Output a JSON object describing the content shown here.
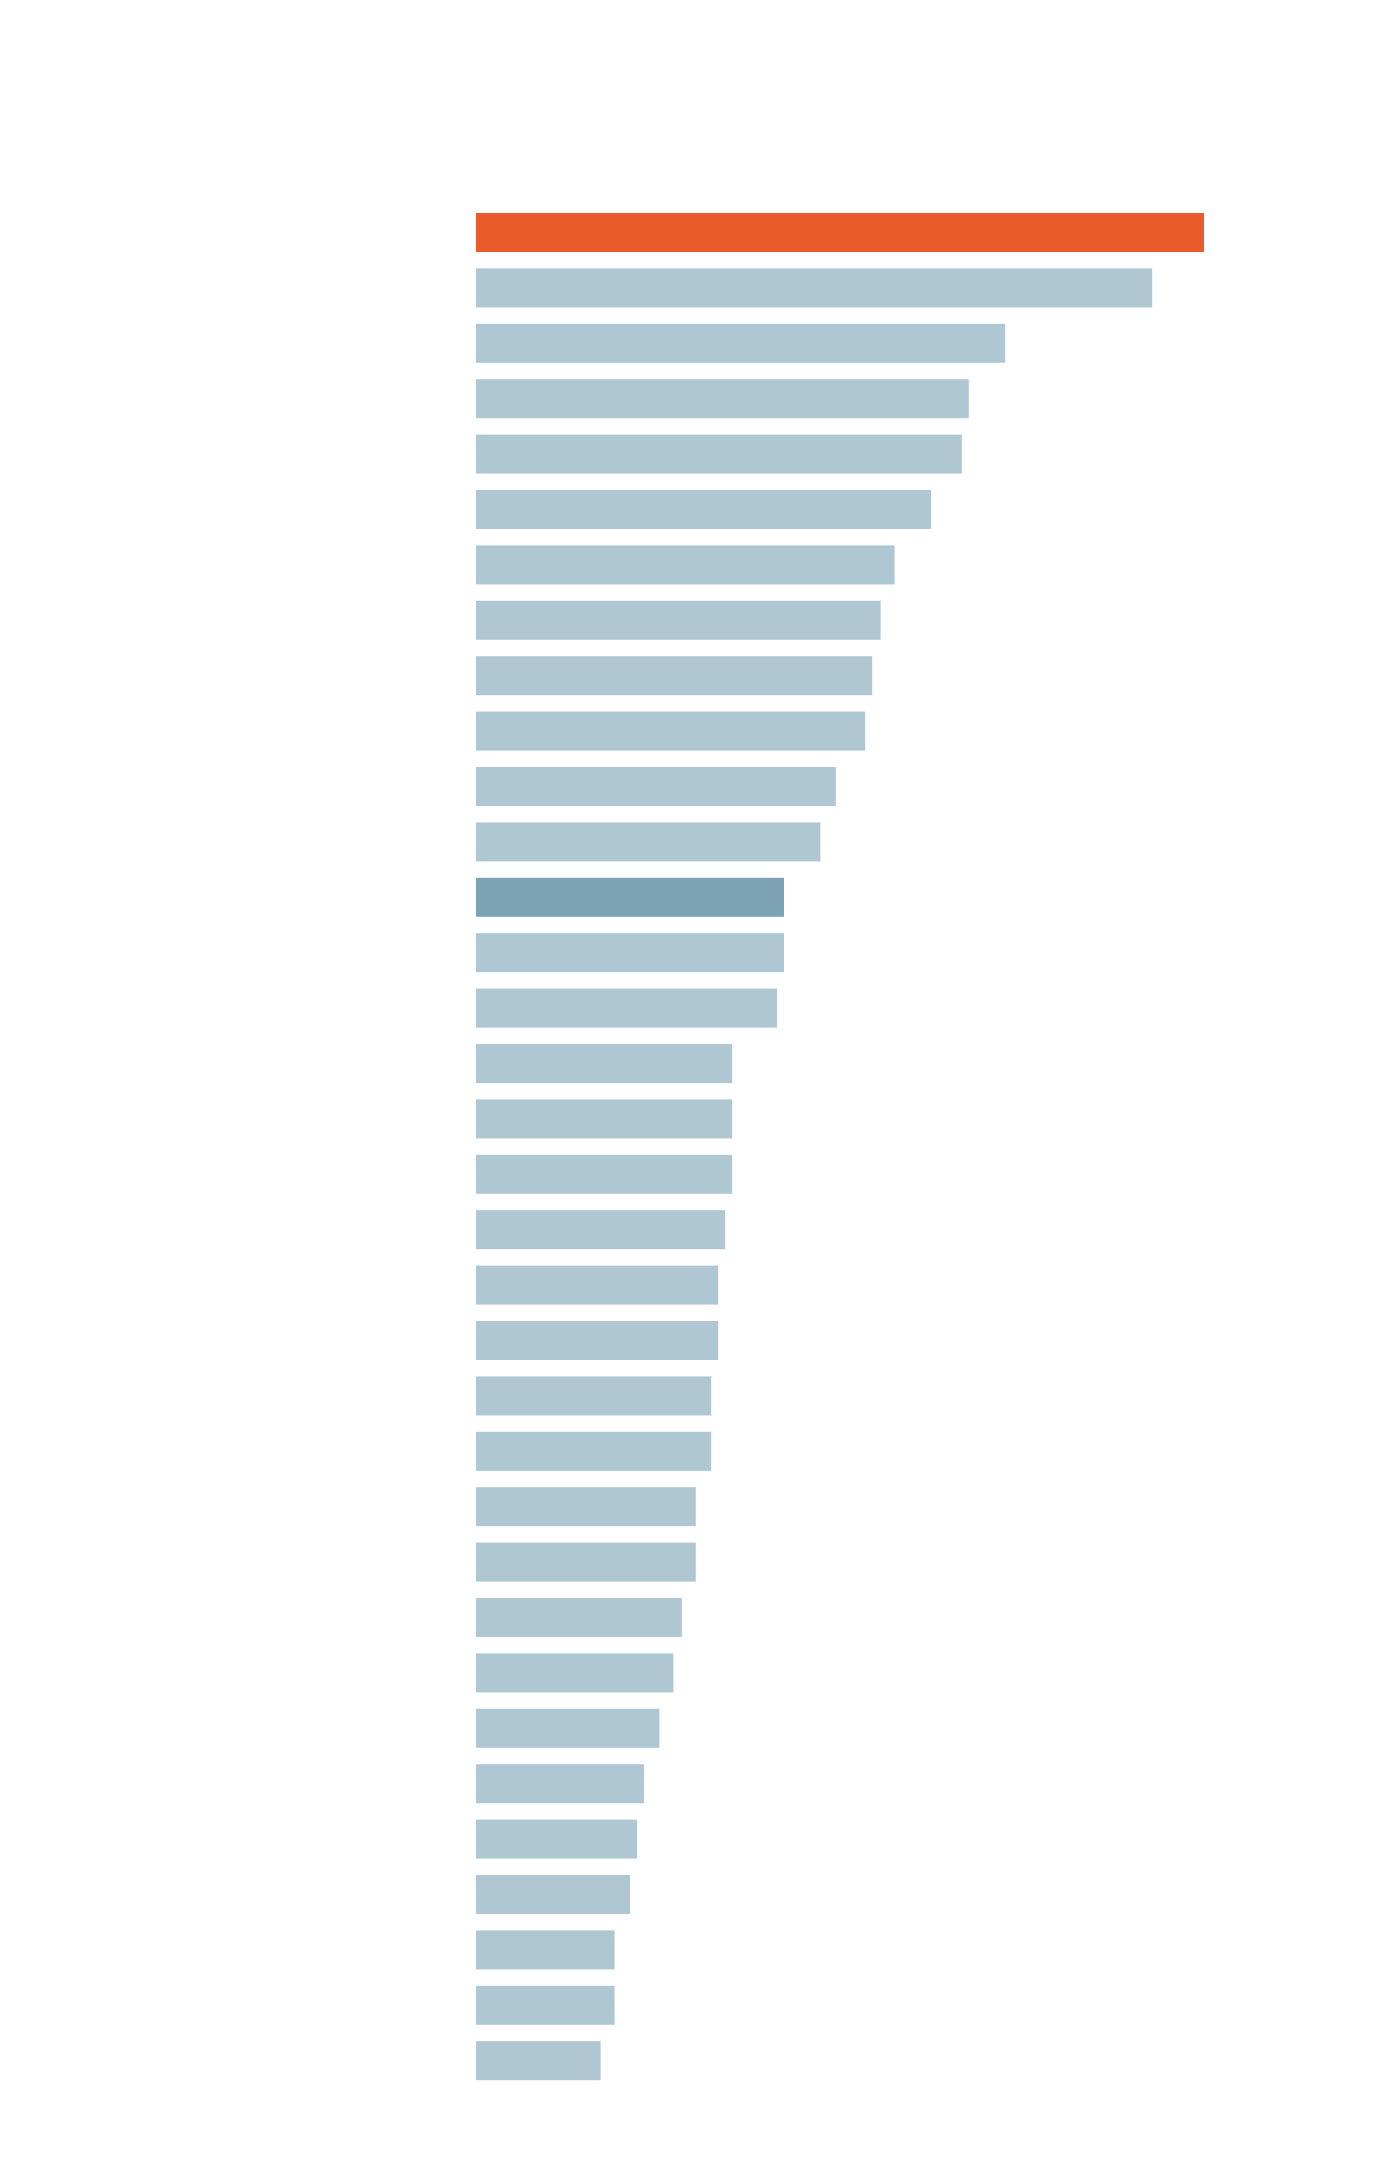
{
  "chart_data": {
    "type": "barh",
    "values": [
      520,
      483,
      378,
      352,
      347,
      325,
      299,
      289,
      283,
      278,
      257,
      246,
      220,
      220,
      215,
      183,
      183,
      183,
      178,
      173,
      173,
      168,
      168,
      157,
      157,
      147,
      141,
      131,
      120,
      115,
      110,
      99,
      99,
      89
    ],
    "colors": [
      "#ea5b2b",
      "#aec7d2",
      "#aec7d2",
      "#aec7d2",
      "#aec7d2",
      "#aec7d2",
      "#aec7d2",
      "#aec7d2",
      "#aec7d2",
      "#aec7d2",
      "#aec7d2",
      "#aec7d2",
      "#7ba3b4",
      "#aec7d2",
      "#aec7d2",
      "#aec7d2",
      "#aec7d2",
      "#aec7d2",
      "#aec7d2",
      "#aec7d2",
      "#aec7d2",
      "#aec7d2",
      "#aec7d2",
      "#aec7d2",
      "#aec7d2",
      "#aec7d2",
      "#aec7d2",
      "#aec7d2",
      "#aec7d2",
      "#aec7d2",
      "#aec7d2",
      "#aec7d2",
      "#aec7d2",
      "#aec7d2"
    ],
    "xlim": [
      0,
      520
    ]
  }
}
